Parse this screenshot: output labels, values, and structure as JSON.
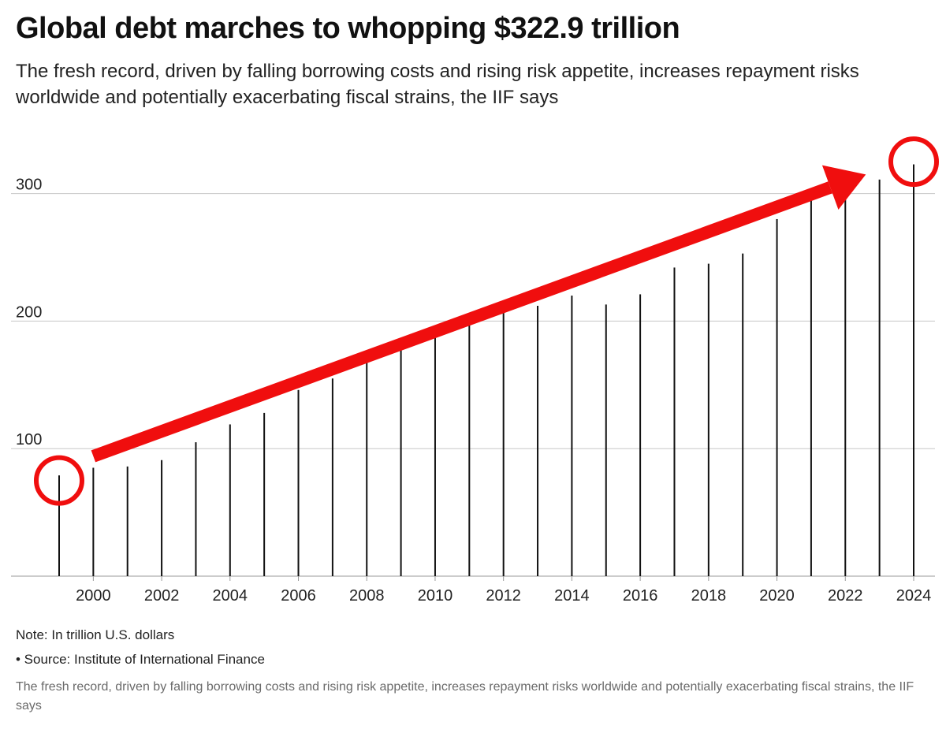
{
  "header": {
    "title": "Global debt marches to whopping $322.9 trillion",
    "subtitle": "The fresh record, driven by falling borrowing costs and rising risk appetite, increases repayment risks worldwide and potentially exacerbating fiscal strains, the IIF says"
  },
  "footer": {
    "note": "Note: In trillion U.S. dollars",
    "source": "• Source: Institute of International Finance",
    "caption": "The fresh record, driven by falling borrowing costs and rising risk appetite, increases repayment risks worldwide and potentially exacerbating fiscal strains, the IIF says"
  },
  "chart_data": {
    "type": "bar",
    "title": "Global debt marches to whopping $322.9 trillion",
    "xlabel": "",
    "ylabel": "",
    "x_ticks": [
      "2000",
      "2002",
      "2004",
      "2006",
      "2008",
      "2010",
      "2012",
      "2014",
      "2016",
      "2018",
      "2020",
      "2022",
      "2024"
    ],
    "y_ticks": [
      "100",
      "200",
      "300"
    ],
    "ylim": [
      0,
      345
    ],
    "grid": true,
    "series": [
      {
        "color": "#111111",
        "points": [
          {
            "x": 1999.0,
            "y": 79
          },
          {
            "x": 2000.0,
            "y": 85
          },
          {
            "x": 2001.0,
            "y": 86
          },
          {
            "x": 2002.0,
            "y": 91
          },
          {
            "x": 2003.0,
            "y": 105
          },
          {
            "x": 2004.0,
            "y": 119
          },
          {
            "x": 2005.0,
            "y": 128
          },
          {
            "x": 2006.0,
            "y": 146
          },
          {
            "x": 2007.0,
            "y": 155
          },
          {
            "x": 2008.0,
            "y": 172
          },
          {
            "x": 2009.0,
            "y": 181
          },
          {
            "x": 2010.0,
            "y": 191
          },
          {
            "x": 2011.0,
            "y": 202
          },
          {
            "x": 2012.0,
            "y": 210
          },
          {
            "x": 2013.0,
            "y": 212
          },
          {
            "x": 2014.0,
            "y": 220
          },
          {
            "x": 2015.0,
            "y": 213
          },
          {
            "x": 2016.0,
            "y": 221
          },
          {
            "x": 2017.0,
            "y": 242
          },
          {
            "x": 2018.0,
            "y": 245
          },
          {
            "x": 2019.0,
            "y": 253
          },
          {
            "x": 2020.0,
            "y": 280
          },
          {
            "x": 2021.0,
            "y": 299
          },
          {
            "x": 2022.0,
            "y": 299
          },
          {
            "x": 2023.0,
            "y": 311
          },
          {
            "x": 2024.0,
            "y": 322.9
          }
        ]
      }
    ],
    "annotations": {
      "color": "#f00e0e",
      "trend_arrow": {
        "from": {
          "x": 2000.0,
          "y": 94
        },
        "to": {
          "x": 2022.6,
          "y": 315
        }
      },
      "circles": [
        {
          "x": 1999.0,
          "y": 75
        },
        {
          "x": 2024.0,
          "y": 325
        }
      ]
    }
  }
}
